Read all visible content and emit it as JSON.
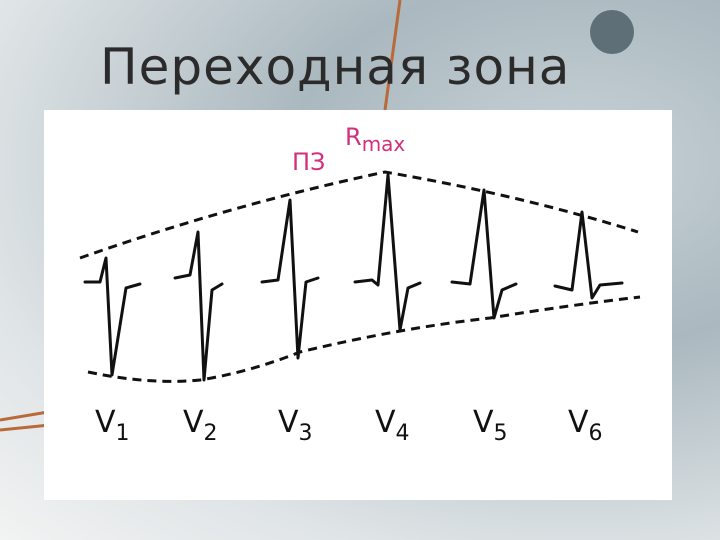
{
  "header": {
    "title": "Переходная зона"
  },
  "figure": {
    "transition_zone_label": "ПЗ",
    "r_max_label": {
      "main": "R",
      "sub": "max"
    },
    "leads": [
      {
        "main": "V",
        "sub": "1"
      },
      {
        "main": "V",
        "sub": "2"
      },
      {
        "main": "V",
        "sub": "3"
      },
      {
        "main": "V",
        "sub": "4"
      },
      {
        "main": "V",
        "sub": "5"
      },
      {
        "main": "V",
        "sub": "6"
      }
    ]
  }
}
